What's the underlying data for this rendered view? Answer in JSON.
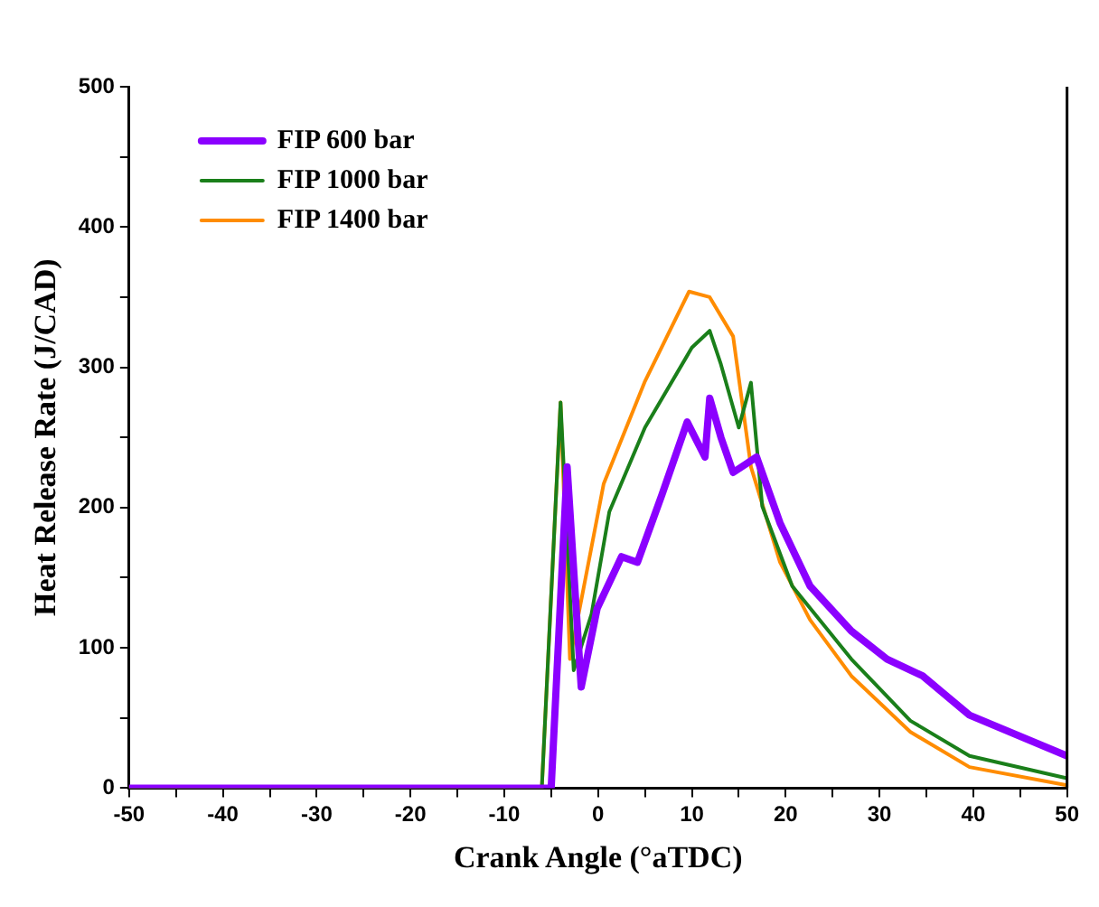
{
  "chart_data": {
    "type": "line",
    "xlabel": "Crank Angle (°aTDC)",
    "ylabel": "Heat Release Rate (J/CAD)",
    "xlim": [
      -50,
      50
    ],
    "xticks": [
      -50,
      {
        "value": -45,
        "label": null
      },
      -40,
      {
        "value": -35,
        "label": null
      },
      -30,
      {
        "value": -25,
        "label": null
      },
      -20,
      {
        "value": -15,
        "label": null
      },
      -10,
      {
        "value": -5,
        "label": null
      },
      0,
      {
        "value": 5,
        "label": null
      },
      10,
      {
        "value": 15,
        "label": null
      },
      20,
      {
        "value": 25,
        "label": null
      },
      30,
      {
        "value": 35,
        "label": null
      },
      40,
      {
        "value": 45,
        "label": null
      },
      50
    ],
    "ylim": [
      0,
      500
    ],
    "yticks": [
      0,
      {
        "value": 50,
        "label": null
      },
      100,
      {
        "value": 150,
        "label": null
      },
      200,
      {
        "value": 250,
        "label": null
      },
      300,
      {
        "value": 350,
        "label": null
      },
      400,
      {
        "value": 450,
        "label": null
      },
      500
    ],
    "grid": false,
    "legend": "top left",
    "marker": "none",
    "line_style": "solid",
    "series": [
      {
        "name": "FIP 600 bar",
        "color": "#8b00ff",
        "x": [
          -50,
          -5,
          -3.3,
          -1.8,
          -0.1,
          2.5,
          4.2,
          6.8,
          9.5,
          11.4,
          11.9,
          13.1,
          14.4,
          16.9,
          19.4,
          22.6,
          27,
          30.8,
          34.6,
          39.6,
          50
        ],
        "values": [
          0,
          0,
          229,
          72,
          128,
          165,
          161,
          209,
          261,
          236,
          278,
          250,
          225,
          236,
          189,
          144,
          112,
          92,
          80,
          52,
          23
        ]
      },
      {
        "name": "FIP 1000 bar",
        "color": "#1a7f1a",
        "x": [
          -50,
          -6,
          -4,
          -2.6,
          -0.7,
          1.2,
          5,
          10,
          11.9,
          13.1,
          15,
          16.3,
          17.5,
          20.7,
          27,
          33.3,
          39.6,
          50
        ],
        "values": [
          0,
          0,
          275,
          84,
          124,
          197,
          257,
          314,
          326,
          302,
          257,
          289,
          201,
          144,
          92,
          48,
          23,
          7
        ]
      },
      {
        "name": "FIP 1400 bar",
        "color": "#ff8c00",
        "x": [
          -50,
          -6,
          -4,
          -3,
          0.6,
          5,
          9.7,
          11.9,
          14.4,
          16.3,
          19.4,
          22.6,
          27,
          33.3,
          39.6,
          50
        ],
        "values": [
          0,
          0,
          275,
          92,
          217,
          290,
          354,
          350,
          322,
          229,
          161,
          120,
          80,
          40,
          15,
          2
        ]
      }
    ]
  }
}
